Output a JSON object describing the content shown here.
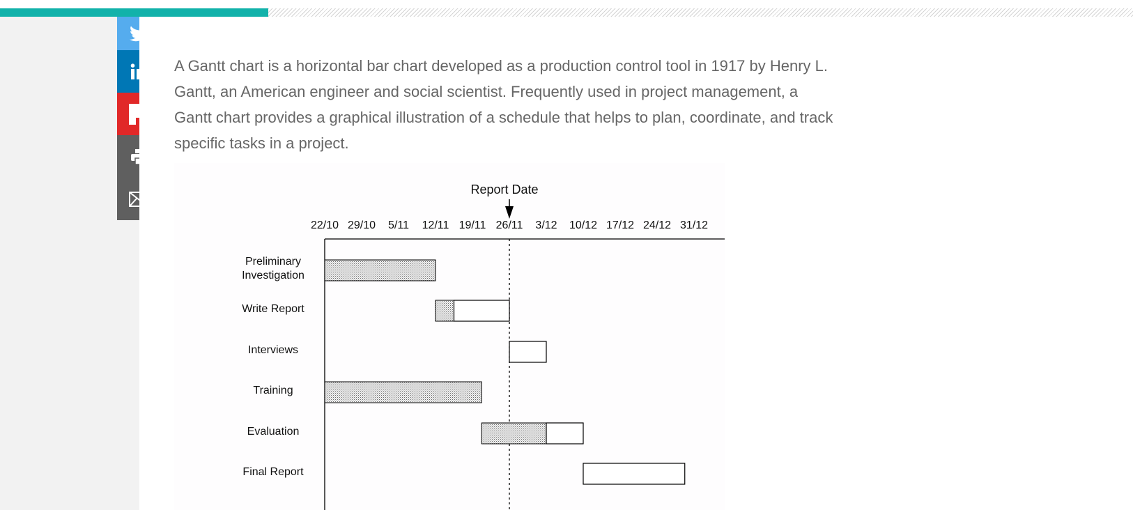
{
  "page": {
    "progress_fraction": 0.237,
    "colors": {
      "progress_fill": "#12b2aa",
      "twitter": "#55acee",
      "linkedin": "#0077b5",
      "flipboard": "#e12828",
      "print": "#5f5f5f",
      "email": "#5f5f5f",
      "body_text": "#666666"
    }
  },
  "share": {
    "items": [
      {
        "key": "twitter",
        "icon": "twitter-icon"
      },
      {
        "key": "linkedin",
        "icon": "linkedin-icon"
      },
      {
        "key": "flipboard",
        "icon": "flipboard-icon"
      },
      {
        "key": "print",
        "icon": "print-icon"
      },
      {
        "key": "email",
        "icon": "email-icon"
      }
    ]
  },
  "article": {
    "intro": "A Gantt chart is a horizontal bar chart developed as a production control tool in 1917 by Henry L. Gantt, an American engineer and social scientist. Frequently used in project management, a Gantt chart provides a graphical illustration of a schedule that helps to plan, coordinate, and track specific tasks in a project."
  },
  "chart_data": {
    "type": "gantt",
    "x": [
      "22/10",
      "29/10",
      "5/11",
      "12/11",
      "19/11",
      "26/11",
      "3/12",
      "10/12",
      "17/12",
      "24/12",
      "31/12"
    ],
    "report_date": {
      "label": "Report Date",
      "week": 5
    },
    "tasks": [
      {
        "name": [
          "Preliminary",
          "Investigation"
        ],
        "start": 0,
        "done_until": 3,
        "end": 3
      },
      {
        "name": [
          "Write Report"
        ],
        "start": 3,
        "done_until": 3.5,
        "end": 5
      },
      {
        "name": [
          "Interviews"
        ],
        "start": 5,
        "done_until": 5,
        "end": 6
      },
      {
        "name": [
          "Training"
        ],
        "start": 0,
        "done_until": 4.25,
        "end": 4.25
      },
      {
        "name": [
          "Evaluation"
        ],
        "start": 4.25,
        "done_until": 6,
        "end": 7
      },
      {
        "name": [
          "Final Report"
        ],
        "start": 7,
        "done_until": 7,
        "end": 9.75
      }
    ]
  }
}
